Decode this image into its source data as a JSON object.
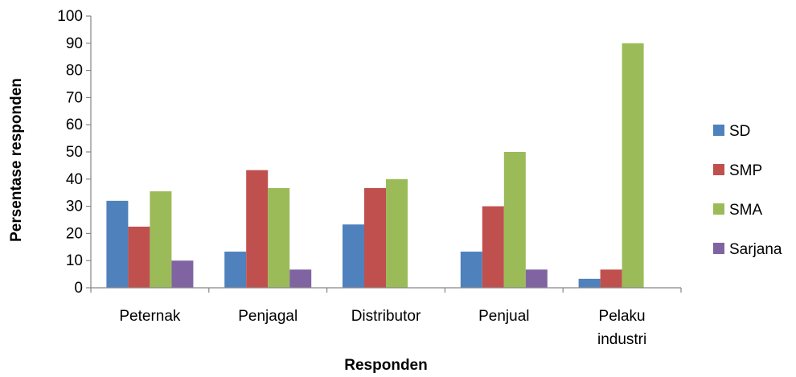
{
  "chart_data": {
    "type": "bar",
    "categories": [
      [
        "Peternak"
      ],
      [
        "Penjagal"
      ],
      [
        "Distributor"
      ],
      [
        "Penjual"
      ],
      [
        "Pelaku",
        "industri"
      ]
    ],
    "series": [
      {
        "name": "SD",
        "color": "#4F81BD",
        "values": [
          32,
          13.3,
          23.3,
          13.3,
          3.3
        ]
      },
      {
        "name": "SMP",
        "color": "#C0504D",
        "values": [
          22.5,
          43.3,
          36.7,
          30,
          6.7
        ]
      },
      {
        "name": "SMA",
        "color": "#9BBB59",
        "values": [
          35.5,
          36.7,
          40,
          50,
          90
        ]
      },
      {
        "name": "Sarjana",
        "color": "#8064A2",
        "values": [
          10,
          6.7,
          0,
          6.7,
          0
        ]
      }
    ],
    "xlabel": "Responden",
    "ylabel": "Persentase responden",
    "ylim": [
      0,
      100
    ],
    "yticks": [
      0,
      10,
      20,
      30,
      40,
      50,
      60,
      70,
      80,
      90,
      100
    ],
    "grid": false,
    "legend_position": "right"
  }
}
